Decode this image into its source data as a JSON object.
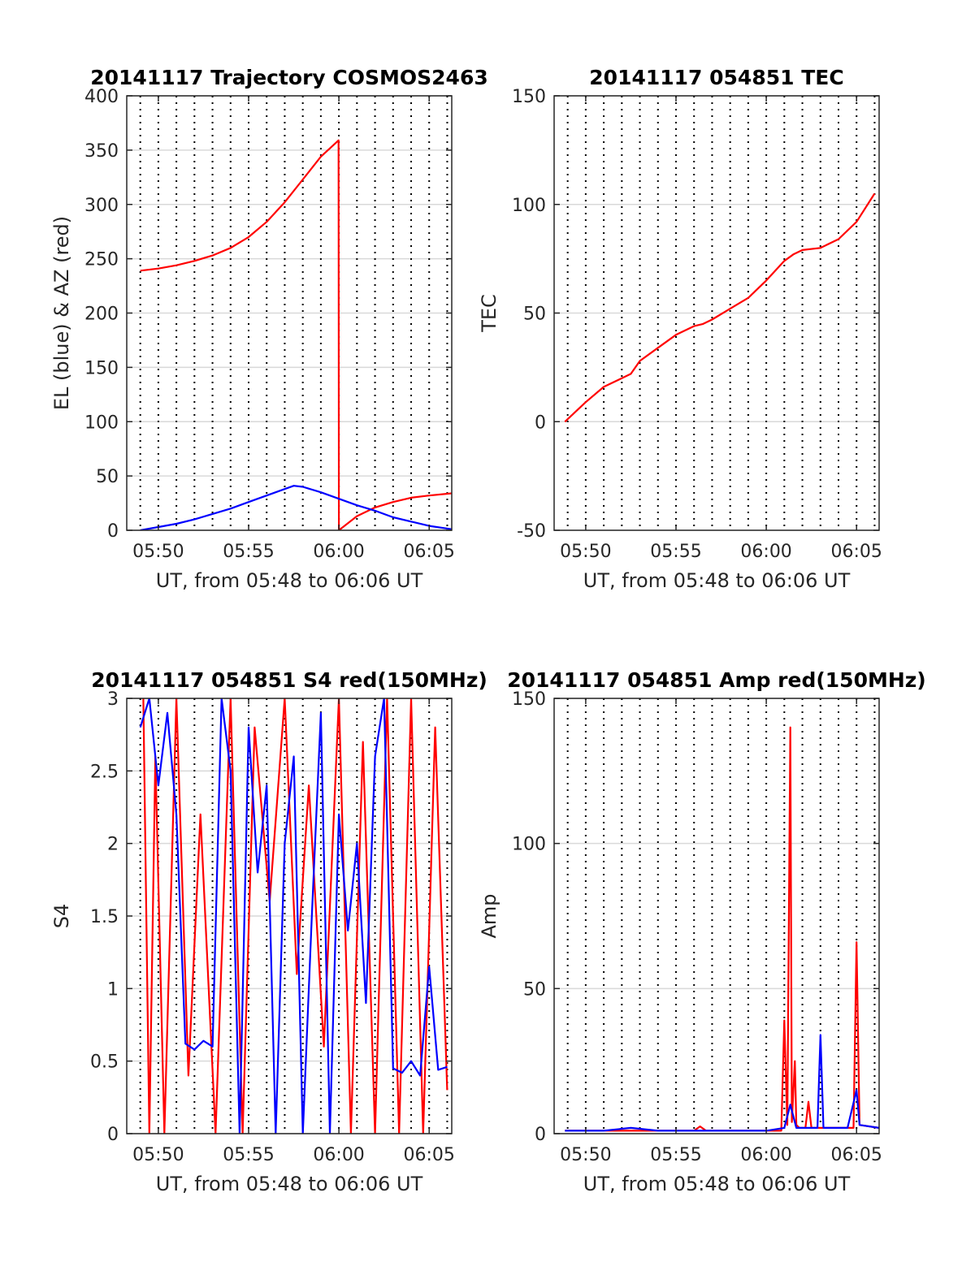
{
  "colors": {
    "az": "#ff0000",
    "el": "#0000ff",
    "red": "#ff0000",
    "blue": "#0000ff",
    "axis": "#262626",
    "grid": "#d9d9d9"
  },
  "chart_data": [
    {
      "id": "trajectory",
      "type": "line",
      "title": "20141117 Trajectory COSMOS2463",
      "xlabel": "UT, from 05:48 to 06:06 UT",
      "ylabel": "EL (blue) & AZ (red)",
      "xlim": [
        "05:48:15",
        "06:06:15"
      ],
      "ylim": [
        0,
        400
      ],
      "xticks": [
        "05:50",
        "05:55",
        "06:00",
        "06:05"
      ],
      "yticks": [
        0,
        50,
        100,
        150,
        200,
        250,
        300,
        350,
        400
      ],
      "grid": "horizontal solid, vertical dotted every minute",
      "series": [
        {
          "color": "az",
          "x": [
            "05:49:00",
            "05:50:00",
            "05:51:00",
            "05:52:00",
            "05:53:00",
            "05:54:00",
            "05:55:00",
            "05:56:00",
            "05:57:00",
            "05:58:00",
            "05:59:00",
            "05:59:59",
            "06:00:00",
            "06:01:00",
            "06:02:00",
            "06:03:00",
            "06:04:00",
            "06:05:00",
            "06:06:15"
          ],
          "y": [
            239,
            241,
            244,
            248,
            253,
            260,
            270,
            284,
            302,
            323,
            344,
            359,
            0,
            13,
            21,
            26,
            30,
            32,
            34
          ]
        },
        {
          "color": "el",
          "x": [
            "05:49:00",
            "05:50:00",
            "05:51:00",
            "05:52:00",
            "05:53:00",
            "05:54:00",
            "05:55:00",
            "05:56:00",
            "05:57:00",
            "05:57:30",
            "05:58:00",
            "05:59:00",
            "06:00:00",
            "06:01:00",
            "06:02:00",
            "06:03:00",
            "06:04:00",
            "06:05:00",
            "06:06:15"
          ],
          "y": [
            0,
            3,
            6,
            10,
            15,
            20,
            26,
            32,
            38,
            41,
            40,
            35,
            29,
            23,
            18,
            12,
            8,
            4,
            1
          ]
        }
      ]
    },
    {
      "id": "tec",
      "type": "line",
      "title": "20141117 054851 TEC",
      "xlabel": "UT, from 05:48 to 06:06 UT",
      "ylabel": "TEC",
      "xlim": [
        "05:48:15",
        "06:06:15"
      ],
      "ylim": [
        -50,
        150
      ],
      "xticks": [
        "05:50",
        "05:55",
        "06:00",
        "06:05"
      ],
      "yticks": [
        -50,
        0,
        50,
        100,
        150
      ],
      "grid": "horizontal solid, vertical dotted every minute",
      "series": [
        {
          "color": "red",
          "x": [
            "05:48:51",
            "05:50:00",
            "05:51:00",
            "05:52:00",
            "05:52:30",
            "05:53:00",
            "05:54:00",
            "05:55:00",
            "05:56:00",
            "05:56:30",
            "05:57:00",
            "05:58:00",
            "05:59:00",
            "06:00:00",
            "06:01:00",
            "06:01:30",
            "06:02:00",
            "06:03:00",
            "06:04:00",
            "06:05:00",
            "06:06:00"
          ],
          "y": [
            0,
            9,
            16,
            20,
            22,
            28,
            34,
            40,
            44,
            45,
            47,
            52,
            57,
            65,
            74,
            77,
            79,
            80,
            84,
            92,
            105
          ]
        }
      ]
    },
    {
      "id": "s4",
      "type": "line",
      "title": "20141117 054851 S4 red(150MHz)",
      "xlabel": "UT, from 05:48 to 06:06 UT",
      "ylabel": "S4",
      "xlim": [
        "05:48:15",
        "06:06:15"
      ],
      "ylim": [
        0,
        3
      ],
      "xticks": [
        "05:50",
        "05:55",
        "06:00",
        "06:05"
      ],
      "yticks": [
        0,
        0.5,
        1,
        1.5,
        2,
        2.5,
        3
      ],
      "grid": "horizontal solid, vertical dotted every minute",
      "series": [
        {
          "color": "red",
          "x": [
            "05:49:10",
            "05:49:30",
            "05:49:50",
            "05:50:20",
            "05:51:00",
            "05:51:40",
            "05:52:20",
            "05:53:10",
            "05:54:00",
            "05:54:40",
            "05:55:20",
            "05:56:10",
            "05:57:00",
            "05:57:40",
            "05:58:20",
            "05:59:10",
            "06:00:00",
            "06:00:40",
            "06:01:20",
            "06:02:00",
            "06:02:40",
            "06:03:20",
            "06:04:00",
            "06:04:40",
            "06:05:20",
            "06:06:00"
          ],
          "y": [
            3,
            0,
            2.6,
            0,
            3,
            0.4,
            2.2,
            0,
            3,
            0,
            2.8,
            1.6,
            3,
            1.1,
            2.4,
            0.6,
            3,
            0,
            2.7,
            0,
            3,
            0,
            3,
            0,
            2.8,
            0.3
          ]
        },
        {
          "color": "blue",
          "x": [
            "05:49:00",
            "05:49:30",
            "05:50:00",
            "05:50:30",
            "05:51:00",
            "05:51:30",
            "05:52:00",
            "05:52:30",
            "05:53:00",
            "05:53:30",
            "05:54:00",
            "05:54:30",
            "05:55:00",
            "05:55:30",
            "05:56:00",
            "05:56:30",
            "05:57:00",
            "05:57:30",
            "05:58:00",
            "05:58:30",
            "05:59:00",
            "05:59:30",
            "06:00:00",
            "06:00:30",
            "06:01:00",
            "06:01:30",
            "06:02:00",
            "06:02:30",
            "06:03:00",
            "06:03:30",
            "06:04:00",
            "06:04:30",
            "06:05:00",
            "06:05:30",
            "06:06:00"
          ],
          "y": [
            2.8,
            3,
            2.4,
            2.9,
            2.2,
            0.62,
            0.58,
            0.64,
            0.6,
            3,
            2.5,
            0,
            2.8,
            1.8,
            2.4,
            0,
            2.0,
            2.6,
            0,
            1.5,
            2.9,
            0,
            2.2,
            1.4,
            2.0,
            0.9,
            2.6,
            3,
            0.45,
            0.42,
            0.5,
            0.4,
            1.15,
            0.44,
            0.46
          ]
        }
      ]
    },
    {
      "id": "amp",
      "type": "line",
      "title": "20141117 054851 Amp red(150MHz)",
      "xlabel": "UT, from 05:48 to 06:06 UT",
      "ylabel": "Amp",
      "xlim": [
        "05:48:15",
        "06:06:15"
      ],
      "ylim": [
        0,
        150
      ],
      "xticks": [
        "05:50",
        "05:55",
        "06:00",
        "06:05"
      ],
      "yticks": [
        0,
        50,
        100,
        150
      ],
      "grid": "horizontal solid, vertical dotted every minute",
      "series": [
        {
          "color": "red",
          "x": [
            "05:48:51",
            "05:52:00",
            "05:56:00",
            "05:56:20",
            "05:56:40",
            "06:00:50",
            "06:01:00",
            "06:01:10",
            "06:01:20",
            "06:01:25",
            "06:01:35",
            "06:01:40",
            "06:01:50",
            "06:02:10",
            "06:02:20",
            "06:02:30",
            "06:04:50",
            "06:05:00",
            "06:05:10",
            "06:06:15"
          ],
          "y": [
            1,
            1,
            1,
            2.5,
            1,
            1,
            39,
            3,
            140,
            4,
            25,
            3,
            2,
            2,
            11,
            2,
            2,
            66,
            3,
            2
          ]
        },
        {
          "color": "blue",
          "x": [
            "05:48:51",
            "05:51:00",
            "05:52:30",
            "05:54:00",
            "05:56:00",
            "05:58:00",
            "06:00:00",
            "06:01:00",
            "06:01:20",
            "06:01:40",
            "06:02:50",
            "06:03:00",
            "06:03:10",
            "06:04:30",
            "06:05:00",
            "06:05:10",
            "06:06:15"
          ],
          "y": [
            1,
            1,
            2,
            1,
            1,
            1,
            1,
            2,
            10,
            2,
            2,
            34,
            2,
            2,
            15,
            3,
            2
          ]
        }
      ]
    }
  ]
}
